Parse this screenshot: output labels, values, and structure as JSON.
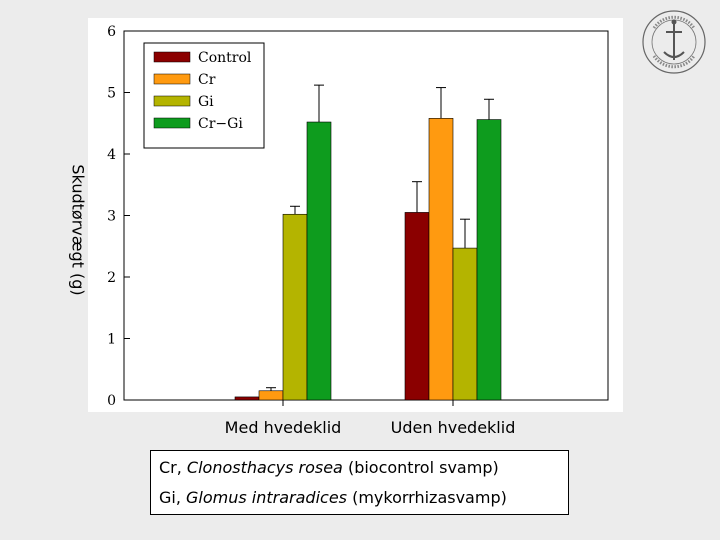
{
  "chart_data": {
    "type": "bar",
    "categories": [
      "Med hvedeklid",
      "Uden hvedeklid"
    ],
    "series": [
      {
        "name": "Control",
        "values": [
          0.05,
          3.05
        ],
        "errors": [
          0.0,
          0.5
        ],
        "color": "#8b0000"
      },
      {
        "name": "Cr",
        "values": [
          0.15,
          4.58
        ],
        "errors": [
          0.05,
          0.5
        ],
        "color": "#ff9a10"
      },
      {
        "name": "Gi",
        "values": [
          3.02,
          2.47
        ],
        "errors": [
          0.13,
          0.47
        ],
        "color": "#b4b400"
      },
      {
        "name": "Cr−Gi",
        "values": [
          4.52,
          4.56
        ],
        "errors": [
          0.6,
          0.33
        ],
        "color": "#0e9c1e"
      }
    ],
    "ylabel": "Skudtørvægt (g)",
    "ylim": [
      0,
      6
    ],
    "yticks": [
      "0",
      "1",
      "2",
      "3",
      "4",
      "5",
      "6"
    ],
    "legend_position": "top-left",
    "grid": false
  },
  "notes": {
    "line1_prefix": "Cr, ",
    "line1_species": "Clonosthacys rosea",
    "line1_suffix": " (biocontrol svamp)",
    "line2_prefix": "Gi, ",
    "line2_species": "Glomus intraradices",
    "line2_suffix": " (mykorrhizasvamp)"
  },
  "logo": {
    "icon": "university-seal-icon"
  }
}
